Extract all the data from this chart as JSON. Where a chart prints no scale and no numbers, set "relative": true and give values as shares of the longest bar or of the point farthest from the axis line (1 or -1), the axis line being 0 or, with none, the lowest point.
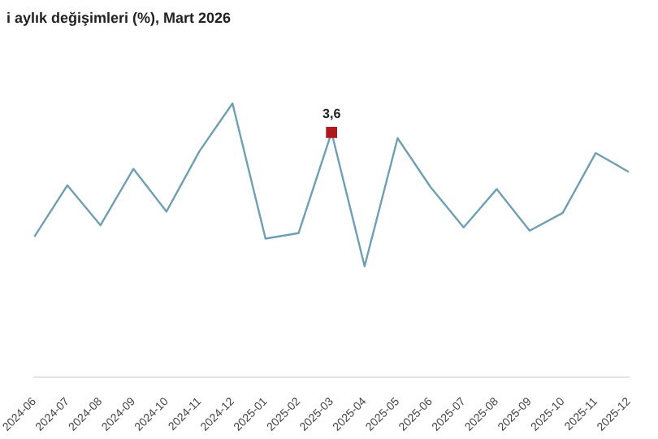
{
  "chart_data": {
    "type": "line",
    "title": "i aylık değişimleri (%), Mart 2026",
    "relative": true,
    "categories": [
      "2024-06",
      "2024-07",
      "2024-08",
      "2024-09",
      "2024-10",
      "2024-11",
      "2024-12",
      "2025-01",
      "2025-02",
      "2025-03",
      "2025-04",
      "2025-05",
      "2025-06",
      "2025-07",
      "2025-08",
      "2025-09",
      "2025-10",
      "2025-11",
      "2025-12"
    ],
    "series": [
      {
        "color": "#6f9fb4",
        "values": [
          0.513,
          0.701,
          0.555,
          0.761,
          0.605,
          0.826,
          1,
          0.506,
          0.526,
          0.894,
          0.405,
          0.873,
          0.694,
          0.547,
          0.687,
          0.535,
          0.6,
          0.819,
          0.75
        ]
      },
      {
        "type": "scatter",
        "color": "#b0181f",
        "marker": "square",
        "values": [
          null,
          null,
          null,
          null,
          null,
          null,
          null,
          null,
          null,
          0.894,
          null,
          null,
          null,
          null,
          null,
          null,
          null,
          null,
          null
        ]
      }
    ],
    "annotations": [
      {
        "text": "3,6",
        "x": "2025-03",
        "y": 0.894
      }
    ],
    "marker": "none",
    "legend": false
  }
}
